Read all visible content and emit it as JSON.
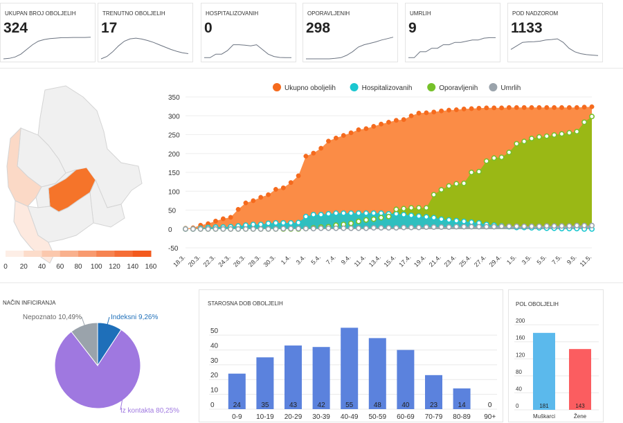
{
  "kpis": [
    {
      "label": "UKUPAN BROJ OBOLJELIH",
      "value": "324",
      "spark": [
        0,
        2,
        8,
        20,
        40,
        60,
        75,
        82,
        86,
        88,
        90,
        90,
        91,
        91,
        91,
        92
      ]
    },
    {
      "label": "TRENUTNO OBOLJELIH",
      "value": "17",
      "spark": [
        0,
        10,
        30,
        55,
        75,
        85,
        88,
        84,
        78,
        70,
        60,
        50,
        40,
        32,
        26,
        22
      ]
    },
    {
      "label": "HOSPITALIZOVANIH",
      "value": "0",
      "spark": [
        5,
        5,
        20,
        20,
        35,
        60,
        60,
        58,
        55,
        60,
        40,
        20,
        10,
        6,
        5,
        5
      ]
    },
    {
      "label": "OPORAVLJENIH",
      "value": "298",
      "spark": [
        0,
        0,
        0,
        0,
        0,
        2,
        5,
        15,
        30,
        50,
        60,
        66,
        72,
        80,
        86,
        92
      ]
    },
    {
      "label": "UMRLIH",
      "value": "9",
      "spark": [
        5,
        5,
        30,
        30,
        45,
        45,
        60,
        60,
        70,
        70,
        75,
        80,
        80,
        88,
        90,
        90
      ]
    },
    {
      "label": "POD NADZOROM",
      "value": "1133",
      "spark": [
        40,
        55,
        70,
        72,
        73,
        75,
        80,
        82,
        85,
        70,
        45,
        30,
        22,
        18,
        16,
        14
      ]
    }
  ],
  "map": {
    "legend_ticks": [
      "0",
      "20",
      "40",
      "60",
      "80",
      "100",
      "120",
      "140",
      "160"
    ],
    "legend_colors": [
      "#fdeee6",
      "#fcdcca",
      "#fbc8ad",
      "#f9b18e",
      "#f89a6f",
      "#f68351",
      "#f56d36",
      "#f35a1e"
    ]
  },
  "chart_data": [
    {
      "type": "area",
      "legend_position": "top-center",
      "x": [
        "18.3.",
        "19.3.",
        "20.3.",
        "21.3.",
        "22.3.",
        "23.3.",
        "24.3.",
        "25.3.",
        "26.3.",
        "27.3.",
        "28.3.",
        "29.3.",
        "30.3.",
        "31.3.",
        "1.4.",
        "2.4.",
        "3.4.",
        "4.4.",
        "5.4.",
        "6.4.",
        "7.4.",
        "8.4.",
        "9.4.",
        "10.4.",
        "11.4.",
        "12.4.",
        "13.4.",
        "14.4.",
        "15.4.",
        "16.4.",
        "17.4.",
        "18.4.",
        "19.4.",
        "20.4.",
        "21.4.",
        "22.4.",
        "23.4.",
        "24.4.",
        "25.4.",
        "26.4.",
        "27.4.",
        "28.4.",
        "29.4.",
        "30.4.",
        "1.5.",
        "2.5.",
        "3.5.",
        "4.5.",
        "5.5.",
        "6.5.",
        "7.5.",
        "8.5.",
        "9.5.",
        "10.5.",
        "11.5."
      ],
      "tick_labels": [
        "18.3.",
        "20.3.",
        "22.3.",
        "24.3.",
        "26.3.",
        "28.3.",
        "30.3.",
        "1.4.",
        "3.4.",
        "5.4.",
        "7.4.",
        "9.4.",
        "11.4.",
        "13.4.",
        "15.4.",
        "17.4.",
        "19.4.",
        "21.4.",
        "23.4.",
        "25.4.",
        "27.4.",
        "29.4.",
        "1.5.",
        "3.5.",
        "5.5.",
        "7.5.",
        "9.5.",
        "11.5."
      ],
      "yticks": [
        350,
        300,
        250,
        200,
        150,
        100,
        50,
        0,
        -50
      ],
      "ylim": [
        -50,
        350
      ],
      "series": [
        {
          "name": "Ukupno oboljelih",
          "color": "#f56a1d",
          "fill": "#fb8c46",
          "values": [
            2,
            3,
            10,
            14,
            21,
            27,
            31,
            52,
            69,
            75,
            84,
            91,
            105,
            109,
            123,
            141,
            193,
            201,
            214,
            233,
            241,
            248,
            255,
            263,
            266,
            272,
            278,
            283,
            288,
            290,
            300,
            307,
            308,
            310,
            313,
            315,
            316,
            318,
            319,
            320,
            321,
            321,
            321,
            322,
            322,
            322,
            322,
            322,
            322,
            322,
            322,
            322,
            322,
            323,
            324
          ]
        },
        {
          "name": "Hospitalizovanih",
          "color": "#1bc7d0",
          "fill": "#2fbfbf",
          "values": [
            0,
            0,
            2,
            4,
            5,
            5,
            6,
            8,
            10,
            12,
            12,
            15,
            16,
            16,
            16,
            17,
            33,
            38,
            38,
            40,
            42,
            42,
            42,
            42,
            42,
            42,
            42,
            40,
            40,
            38,
            36,
            34,
            32,
            30,
            26,
            24,
            22,
            20,
            18,
            16,
            12,
            10,
            8,
            6,
            4,
            4,
            3,
            3,
            2,
            2,
            1,
            1,
            1,
            0,
            0
          ]
        },
        {
          "name": "Oporavljenih",
          "color": "#76c12a",
          "fill": "#9ab815",
          "values": [
            0,
            0,
            0,
            0,
            0,
            0,
            0,
            0,
            0,
            0,
            0,
            0,
            0,
            0,
            0,
            0,
            1,
            3,
            5,
            6,
            10,
            12,
            15,
            20,
            24,
            26,
            30,
            33,
            52,
            54,
            56,
            56,
            56,
            91,
            104,
            114,
            120,
            121,
            150,
            152,
            180,
            188,
            190,
            203,
            226,
            232,
            240,
            244,
            246,
            249,
            252,
            255,
            258,
            283,
            298
          ]
        },
        {
          "name": "Umrlih",
          "color": "#9aa3ab",
          "fill": "#9aa3ab",
          "values": [
            0,
            0,
            0,
            0,
            0,
            0,
            0,
            0,
            0,
            0,
            0,
            0,
            0,
            1,
            1,
            1,
            1,
            1,
            2,
            2,
            2,
            2,
            2,
            2,
            2,
            3,
            3,
            3,
            3,
            4,
            4,
            4,
            5,
            5,
            5,
            5,
            6,
            6,
            6,
            6,
            6,
            6,
            7,
            7,
            7,
            7,
            7,
            7,
            8,
            8,
            8,
            8,
            9,
            9,
            9
          ]
        }
      ]
    },
    {
      "type": "pie",
      "title": "NAČIN INFICIRANJA",
      "slices": [
        {
          "label": "Indeksni 9,26%",
          "value": 9.26,
          "color": "#1e6fb9"
        },
        {
          "label": "Iz kontakta 80,25%",
          "value": 80.25,
          "color": "#9f78e0"
        },
        {
          "label": "Nepoznato 10,49%",
          "value": 10.49,
          "color": "#9aa3ab"
        }
      ]
    },
    {
      "type": "bar",
      "title": "STAROSNA DOB OBOLJELIH",
      "categories": [
        "0-9",
        "10-19",
        "20-29",
        "30-39",
        "40-49",
        "50-59",
        "60-69",
        "70-79",
        "80-89",
        "90+"
      ],
      "values": [
        24,
        35,
        43,
        42,
        55,
        48,
        40,
        23,
        14,
        0
      ],
      "yticks": [
        0,
        10,
        20,
        30,
        40,
        50
      ],
      "ylim": [
        0,
        58
      ],
      "color": "#5b82dd"
    },
    {
      "type": "bar",
      "title": "POL OBOLJELIH",
      "categories": [
        "Muškarci",
        "Žene"
      ],
      "values": [
        181,
        143
      ],
      "colors": [
        "#5bb9ec",
        "#fb5d60"
      ],
      "yticks": [
        0,
        40,
        80,
        120,
        160,
        200
      ],
      "ylim": [
        0,
        210
      ]
    }
  ]
}
